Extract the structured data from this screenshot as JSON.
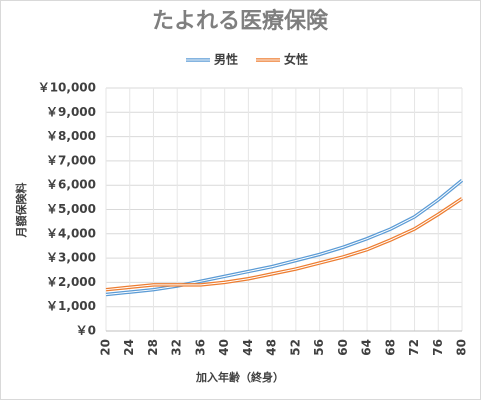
{
  "chart_data": {
    "type": "line",
    "title": "たよれる医療保険",
    "x_label": "加入年齢（終身）",
    "y_label": "月額保険料",
    "x": [
      20,
      24,
      28,
      32,
      36,
      40,
      44,
      48,
      52,
      56,
      60,
      64,
      68,
      72,
      76,
      80
    ],
    "series": [
      {
        "name": "男性",
        "color": "#5b9bd5",
        "values": [
          1500,
          1600,
          1700,
          1850,
          2050,
          2250,
          2450,
          2650,
          2900,
          3150,
          3450,
          3800,
          4200,
          4700,
          5400,
          6200
        ]
      },
      {
        "name": "女性",
        "color": "#ed7d31",
        "values": [
          1700,
          1800,
          1900,
          1900,
          1900,
          2000,
          2150,
          2350,
          2550,
          2800,
          3050,
          3350,
          3750,
          4200,
          4800,
          5450
        ]
      }
    ],
    "xlim": [
      20,
      80
    ],
    "xticks": [
      20,
      24,
      28,
      32,
      36,
      40,
      44,
      48,
      52,
      56,
      60,
      64,
      68,
      72,
      76,
      80
    ],
    "ylim": [
      0,
      10000
    ],
    "yticks": [
      {
        "value": 0,
        "label": "￥0"
      },
      {
        "value": 1000,
        "label": "￥1,000"
      },
      {
        "value": 2000,
        "label": "￥2,000"
      },
      {
        "value": 3000,
        "label": "￥3,000"
      },
      {
        "value": 4000,
        "label": "￥4,000"
      },
      {
        "value": 5000,
        "label": "￥5,000"
      },
      {
        "value": 6000,
        "label": "￥6,000"
      },
      {
        "value": 7000,
        "label": "￥7,000"
      },
      {
        "value": 8000,
        "label": "￥8,000"
      },
      {
        "value": 9000,
        "label": "￥9,000"
      },
      {
        "value": 10000,
        "label": "￥10,000"
      }
    ],
    "grid": true,
    "legend": "top"
  }
}
